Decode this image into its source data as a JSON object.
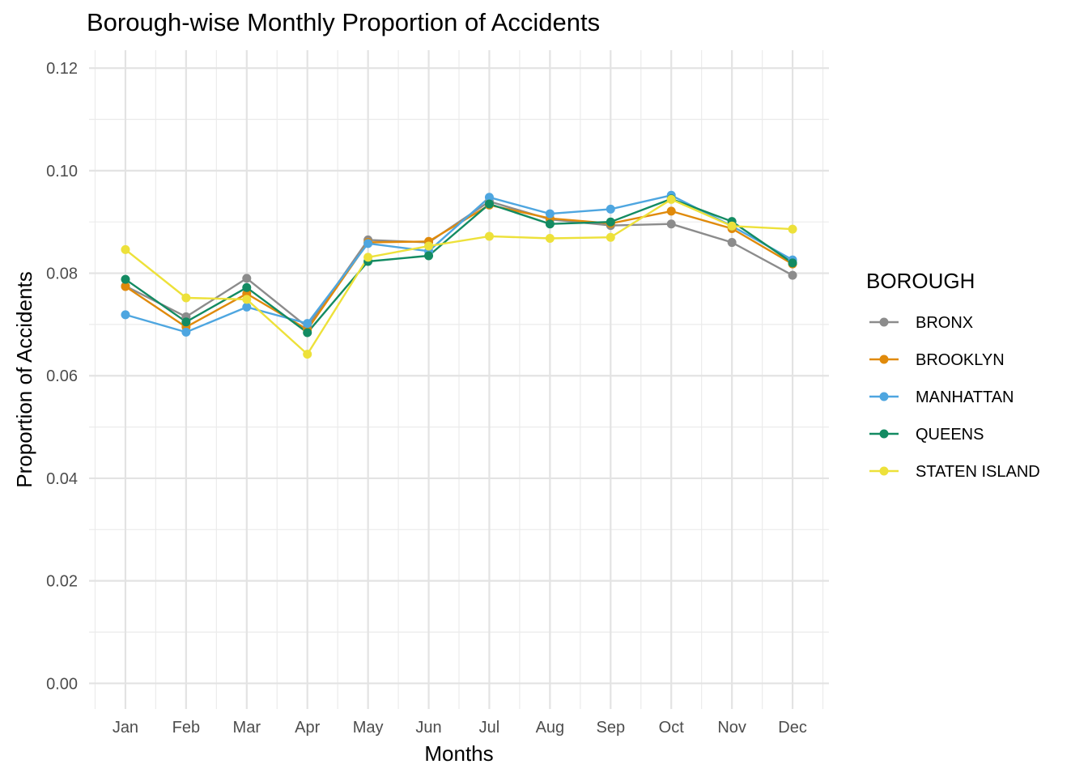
{
  "chart_data": {
    "type": "line",
    "title": "Borough-wise Monthly Proportion of Accidents",
    "xlabel": "Months",
    "ylabel": "Proportion of Accidents",
    "categories": [
      "Jan",
      "Feb",
      "Mar",
      "Apr",
      "May",
      "Jun",
      "Jul",
      "Aug",
      "Sep",
      "Oct",
      "Nov",
      "Dec"
    ],
    "ylim": [
      -0.005,
      0.1235
    ],
    "yticks": [
      0.0,
      0.02,
      0.04,
      0.06,
      0.08,
      0.1,
      0.12
    ],
    "ytick_labels": [
      "0.00",
      "0.02",
      "0.04",
      "0.06",
      "0.08",
      "0.10",
      "0.12"
    ],
    "grid": true,
    "legend": {
      "title": "BOROUGH",
      "position": "right"
    },
    "series": [
      {
        "name": "BRONX",
        "color": "#8c8c8c",
        "values": [
          0.0775,
          0.0715,
          0.079,
          0.0695,
          0.0865,
          0.086,
          0.094,
          0.0905,
          0.0893,
          0.0896,
          0.086,
          0.0796
        ]
      },
      {
        "name": "BROOKLYN",
        "color": "#e08a0b",
        "values": [
          0.0774,
          0.0695,
          0.076,
          0.069,
          0.086,
          0.0862,
          0.0933,
          0.0907,
          0.0897,
          0.0921,
          0.0887,
          0.0818
        ]
      },
      {
        "name": "MANHATTAN",
        "color": "#4ea6e0",
        "values": [
          0.0719,
          0.0685,
          0.0734,
          0.0702,
          0.0858,
          0.0843,
          0.0948,
          0.0916,
          0.0925,
          0.0952,
          0.0892,
          0.0826
        ]
      },
      {
        "name": "QUEENS",
        "color": "#138b62",
        "values": [
          0.0788,
          0.0705,
          0.0772,
          0.0684,
          0.0823,
          0.0834,
          0.0935,
          0.0896,
          0.09,
          0.0945,
          0.0901,
          0.082
        ]
      },
      {
        "name": "STATEN ISLAND",
        "color": "#ede13a",
        "values": [
          0.0846,
          0.0752,
          0.0749,
          0.0642,
          0.0831,
          0.0853,
          0.0872,
          0.0868,
          0.087,
          0.0944,
          0.0892,
          0.0886
        ]
      }
    ]
  }
}
